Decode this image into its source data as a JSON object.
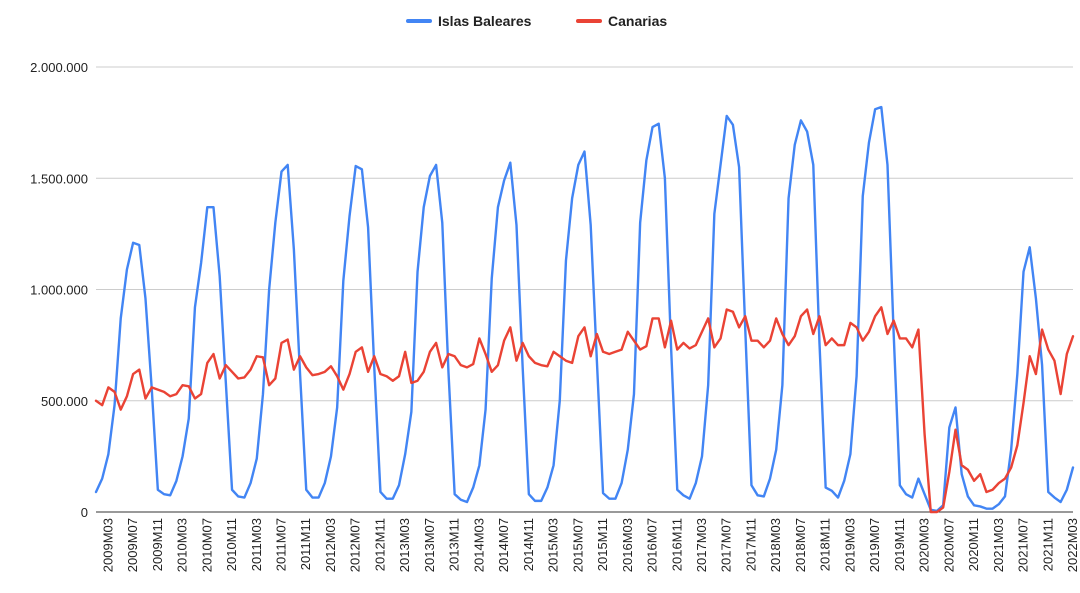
{
  "chart_data": {
    "type": "line",
    "title": "",
    "xlabel": "",
    "ylabel": "",
    "ylim": [
      0,
      2000000
    ],
    "yticks": [
      0,
      500000,
      1000000,
      1500000,
      2000000
    ],
    "ytick_labels": [
      "0",
      "500.000",
      "1.000.000",
      "1.500.000",
      "2.000.000"
    ],
    "grid": true,
    "legend_position": "top-center",
    "start_period": "2009M01",
    "xtick_labels": [
      "2009M03",
      "2009M07",
      "2009M11",
      "2010M03",
      "2010M07",
      "2010M11",
      "2011M03",
      "2011M07",
      "2011M11",
      "2012M03",
      "2012M07",
      "2012M11",
      "2013M03",
      "2013M07",
      "2013M11",
      "2014M03",
      "2014M07",
      "2014M11",
      "2015M03",
      "2015M07",
      "2015M11",
      "2016M03",
      "2016M07",
      "2016M11",
      "2017M03",
      "2017M07",
      "2017M11",
      "2018M03",
      "2018M07",
      "2018M11",
      "2019M03",
      "2019M07",
      "2019M11",
      "2020M03",
      "2020M07",
      "2020M11",
      "2021M03",
      "2021M07",
      "2021M11",
      "2022M03"
    ],
    "series": [
      {
        "name": "Islas Baleares",
        "color": "#4285F4",
        "values": [
          90000,
          150000,
          260000,
          480000,
          870000,
          1090000,
          1210000,
          1200000,
          960000,
          560000,
          100000,
          80000,
          75000,
          140000,
          250000,
          420000,
          920000,
          1120000,
          1370000,
          1370000,
          1060000,
          580000,
          100000,
          70000,
          65000,
          130000,
          240000,
          530000,
          1000000,
          1300000,
          1530000,
          1560000,
          1180000,
          620000,
          100000,
          65000,
          65000,
          130000,
          250000,
          470000,
          1040000,
          1330000,
          1555000,
          1540000,
          1280000,
          650000,
          90000,
          60000,
          60000,
          120000,
          260000,
          450000,
          1080000,
          1370000,
          1510000,
          1560000,
          1300000,
          630000,
          80000,
          55000,
          45000,
          110000,
          210000,
          460000,
          1050000,
          1370000,
          1490000,
          1570000,
          1290000,
          650000,
          80000,
          50000,
          50000,
          110000,
          210000,
          500000,
          1130000,
          1410000,
          1560000,
          1620000,
          1290000,
          680000,
          85000,
          60000,
          60000,
          130000,
          280000,
          530000,
          1300000,
          1580000,
          1730000,
          1745000,
          1500000,
          740000,
          100000,
          75000,
          60000,
          130000,
          250000,
          570000,
          1340000,
          1560000,
          1780000,
          1740000,
          1550000,
          820000,
          120000,
          75000,
          70000,
          150000,
          280000,
          570000,
          1410000,
          1650000,
          1760000,
          1710000,
          1560000,
          760000,
          110000,
          95000,
          65000,
          140000,
          260000,
          610000,
          1420000,
          1660000,
          1810000,
          1820000,
          1560000,
          800000,
          120000,
          80000,
          65000,
          150000,
          80000,
          10000,
          5000,
          30000,
          380000,
          470000,
          170000,
          70000,
          30000,
          25000,
          15000,
          15000,
          35000,
          70000,
          280000,
          620000,
          1080000,
          1190000,
          960000,
          660000,
          90000,
          65000,
          45000,
          100000,
          200000
        ]
      },
      {
        "name": "Canarias",
        "color": "#EA4335",
        "values": [
          500000,
          480000,
          560000,
          540000,
          460000,
          520000,
          620000,
          640000,
          510000,
          560000,
          550000,
          540000,
          520000,
          530000,
          570000,
          565000,
          510000,
          530000,
          670000,
          710000,
          600000,
          660000,
          630000,
          600000,
          605000,
          640000,
          700000,
          695000,
          570000,
          600000,
          760000,
          775000,
          640000,
          700000,
          650000,
          615000,
          620000,
          630000,
          655000,
          610000,
          550000,
          620000,
          720000,
          740000,
          630000,
          700000,
          620000,
          610000,
          590000,
          610000,
          720000,
          580000,
          590000,
          630000,
          720000,
          760000,
          650000,
          710000,
          700000,
          660000,
          650000,
          665000,
          780000,
          710000,
          630000,
          660000,
          770000,
          830000,
          680000,
          760000,
          700000,
          670000,
          660000,
          655000,
          720000,
          700000,
          680000,
          670000,
          790000,
          830000,
          700000,
          800000,
          720000,
          710000,
          720000,
          730000,
          810000,
          770000,
          730000,
          745000,
          870000,
          870000,
          740000,
          860000,
          730000,
          760000,
          735000,
          750000,
          810000,
          870000,
          740000,
          780000,
          910000,
          900000,
          830000,
          880000,
          770000,
          770000,
          740000,
          770000,
          870000,
          800000,
          750000,
          790000,
          880000,
          910000,
          800000,
          880000,
          750000,
          780000,
          750000,
          750000,
          850000,
          830000,
          770000,
          810000,
          880000,
          920000,
          800000,
          860000,
          780000,
          780000,
          740000,
          820000,
          350000,
          0,
          0,
          20000,
          180000,
          370000,
          210000,
          190000,
          140000,
          170000,
          90000,
          100000,
          130000,
          150000,
          200000,
          300000,
          490000,
          700000,
          620000,
          820000,
          730000,
          680000,
          530000,
          710000,
          790000
        ]
      }
    ]
  }
}
